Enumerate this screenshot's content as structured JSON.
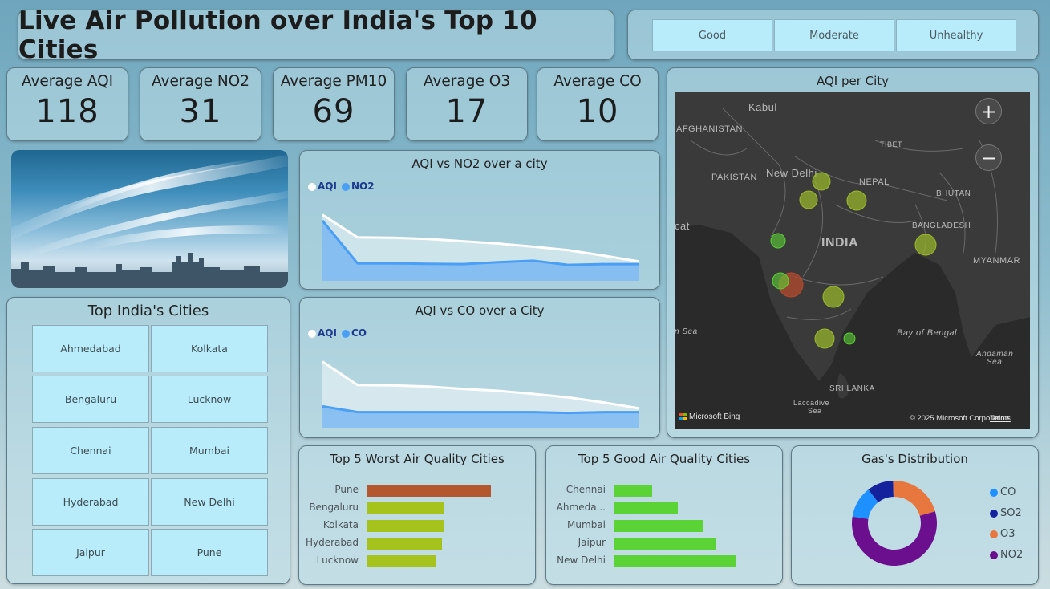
{
  "header": {
    "title": "Live Air Pollution over India's Top 10 Cities"
  },
  "filters": [
    "Good",
    "Moderate",
    "Unhealthy"
  ],
  "kpis": [
    {
      "label": "Average AQI",
      "value": "118"
    },
    {
      "label": "Average NO2",
      "value": "31"
    },
    {
      "label": "Average PM10",
      "value": "69"
    },
    {
      "label": "Average O3",
      "value": "17"
    },
    {
      "label": "Average CO",
      "value": "10"
    }
  ],
  "cities_panel": {
    "title": "Top India's Cities",
    "cities": [
      "Ahmedabad",
      "Kolkata",
      "Bengaluru",
      "Lucknow",
      "Chennai",
      "Mumbai",
      "Hyderabad",
      "New Delhi",
      "Jaipur",
      "Pune"
    ]
  },
  "map": {
    "title": "AQI per City",
    "labels": {
      "kabul": "Kabul",
      "afghanistan": "AFGHANISTAN",
      "tibet": "TIBET",
      "pakistan": "PAKISTAN",
      "new_delhi": "New Delhi",
      "nepal": "NEPAL",
      "bhutan": "BHUTAN",
      "india": "INDIA",
      "bangladesh": "BANGLADESH",
      "myanmar": "MYANMAR",
      "cat": "cat",
      "sea": "n Sea",
      "bay": "Bay of Bengal",
      "andaman": "Andaman",
      "andaman_sea": "Sea",
      "sri_lanka": "SRI LANKA",
      "laccadive": "Laccadive",
      "laccadive_sea": "Sea"
    },
    "attribution": "Microsoft Bing",
    "copyright": "© 2025 Microsoft Corporation",
    "terms": "Terms",
    "zoom_in": "+",
    "zoom_out": "−"
  },
  "colors": {
    "aqi_series": "#ffffff",
    "pollutant_series": "#4a9ff5",
    "worst_top": "#b5572e",
    "worst_other": "#a5c21d",
    "good_bar": "#5bd235",
    "co": "#1e90ff",
    "so2": "#15229e",
    "o3": "#e8763f",
    "no2": "#6b0f8e",
    "map_good": "#9bbb2a",
    "map_bad": "#b54a2e"
  },
  "chart_data": [
    {
      "type": "area",
      "title": "AQI vs NO2 over a city",
      "series": [
        {
          "name": "AQI",
          "values": [
            170,
            112,
            111,
            108,
            102,
            96,
            88,
            79,
            65,
            50
          ]
        },
        {
          "name": "NO2",
          "values": [
            155,
            45,
            45,
            44,
            43,
            48,
            52,
            41,
            43,
            43
          ]
        }
      ]
    },
    {
      "type": "area",
      "title": "AQI vs CO over a City",
      "series": [
        {
          "name": "AQI",
          "values": [
            170,
            110,
            109,
            106,
            100,
            95,
            87,
            78,
            65,
            50
          ]
        },
        {
          "name": "CO",
          "values": [
            55,
            40,
            40,
            40,
            40,
            40,
            40,
            38,
            40,
            40
          ]
        }
      ]
    },
    {
      "type": "bar",
      "title": "Top 5 Worst Air Quality Cities",
      "categories": [
        "Pune",
        "Bengaluru",
        "Kolkata",
        "Hyderabad",
        "Lucknow"
      ],
      "values": [
        195,
        122,
        121,
        118,
        108
      ]
    },
    {
      "type": "bar",
      "title": "Top 5 Good Air Quality Cities",
      "categories": [
        "Chennai",
        "Ahmeda...",
        "Mumbai",
        "Jaipur",
        "New Delhi"
      ],
      "values": [
        48,
        80,
        111,
        128,
        153
      ]
    },
    {
      "type": "pie",
      "title": "Gas's Distribution",
      "categories": [
        "CO",
        "SO2",
        "O3",
        "NO2"
      ],
      "values": [
        12,
        10,
        21,
        57
      ]
    }
  ]
}
